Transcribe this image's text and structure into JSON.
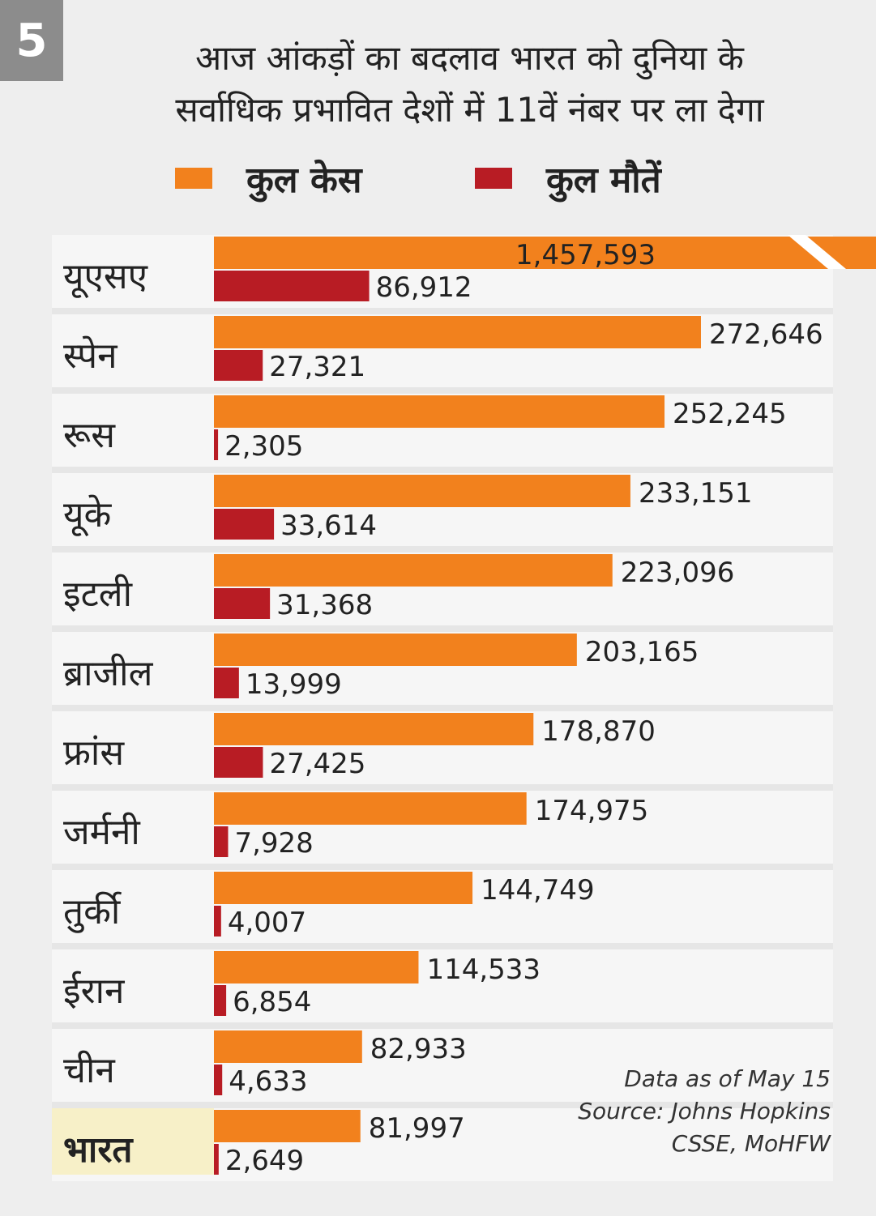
{
  "badge": "5",
  "title": {
    "line1": "आज आंकड़ों का बदलाव भारत को दुनिया के",
    "line2": "सर्वाधिक प्रभावित देशों में 11वें नंबर पर ला देगा"
  },
  "colors": {
    "cases": "#f2811d",
    "deaths": "#b81c24",
    "highlight": "#f7f0c8",
    "row_band": "#e6e6e6"
  },
  "chart_data": {
    "type": "bar",
    "orientation": "horizontal",
    "title": "आज आंकड़ों का बदलाव भारत को दुनिया के सर्वाधिक प्रभावित देशों में 11वें नंबर पर ला देगा",
    "categories": [
      "यूएसए",
      "स्पेन",
      "रूस",
      "यूके",
      "इटली",
      "ब्राजील",
      "फ्रांस",
      "जर्मनी",
      "तुर्की",
      "ईरान",
      "चीन",
      "भारत"
    ],
    "highlight_category": "भारत",
    "series": [
      {
        "name": "कुल केस",
        "values": [
          1457593,
          272646,
          252245,
          233151,
          223096,
          203165,
          178870,
          174975,
          144749,
          114533,
          82933,
          81997
        ],
        "labels": [
          "1,457,593",
          "272,646",
          "252,245",
          "233,151",
          "223,096",
          "203,165",
          "178,870",
          "174,975",
          "144,749",
          "114,533",
          "82,933",
          "81,997"
        ]
      },
      {
        "name": "कुल मौतें",
        "values": [
          86912,
          27321,
          2305,
          33614,
          31368,
          13999,
          27425,
          7928,
          4007,
          6854,
          4633,
          2649
        ],
        "labels": [
          "86,912",
          "27,321",
          "2,305",
          "33,614",
          "31,368",
          "13,999",
          "27,425",
          "7,928",
          "4,007",
          "6,854",
          "4,633",
          "2,649"
        ]
      }
    ],
    "axis_break": "यूएसए",
    "xlim": [
      0,
      272646
    ],
    "legend": "top",
    "grid": false
  },
  "note": {
    "line1": "Data as of May 15",
    "line2": "Source: Johns Hopkins",
    "line3": "CSSE, MoHFW"
  }
}
